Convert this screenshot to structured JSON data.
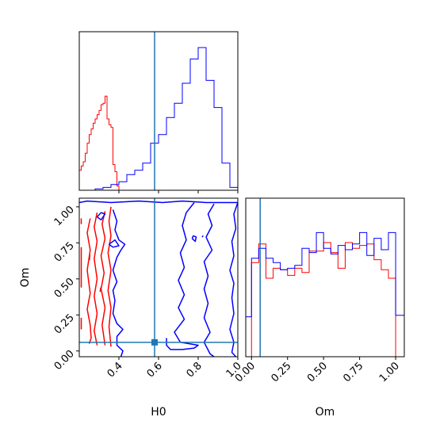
{
  "chart_data": [
    {
      "panel": "H0 marginal",
      "type": "histogram",
      "x_range": [
        0.2,
        1.0
      ],
      "x_ticks": [
        0.4,
        0.6,
        0.8,
        1.0
      ],
      "truth": 0.58,
      "series": [
        {
          "color": "#ff0000",
          "edges": [
            0.2,
            0.21,
            0.22,
            0.23,
            0.24,
            0.25,
            0.26,
            0.27,
            0.28,
            0.29,
            0.3,
            0.31,
            0.32,
            0.33,
            0.34,
            0.35,
            0.36,
            0.37,
            0.38,
            0.39,
            0.4,
            0.41
          ],
          "counts": [
            0.14,
            0.17,
            0.2,
            0.26,
            0.33,
            0.39,
            0.43,
            0.47,
            0.5,
            0.53,
            0.56,
            0.6,
            0.61,
            0.66,
            0.5,
            0.46,
            0.44,
            0.18,
            0.13,
            0.03,
            0.0
          ]
        },
        {
          "color": "#0000ff",
          "edges": [
            0.2,
            0.24,
            0.28,
            0.32,
            0.36,
            0.4,
            0.44,
            0.48,
            0.52,
            0.56,
            0.6,
            0.64,
            0.68,
            0.72,
            0.76,
            0.8,
            0.84,
            0.88,
            0.92,
            0.96,
            1.0
          ],
          "counts": [
            0.0,
            0.0,
            0.01,
            0.02,
            0.04,
            0.06,
            0.11,
            0.14,
            0.19,
            0.33,
            0.39,
            0.51,
            0.61,
            0.75,
            0.92,
            1.0,
            0.77,
            0.58,
            0.19,
            0.02
          ]
        }
      ]
    },
    {
      "panel": "Om marginal",
      "type": "histogram",
      "x_range": [
        -0.04,
        1.06
      ],
      "x_ticks": [
        0.0,
        0.25,
        0.5,
        0.75,
        1.0
      ],
      "x_tick_labels": [
        "0.00",
        "0.25",
        "0.50",
        "0.75",
        "1.00"
      ],
      "xlabel": "Om",
      "truth": 0.06,
      "series": [
        {
          "color": "#ff0000",
          "edges": [
            0.0,
            0.05,
            0.1,
            0.15,
            0.2,
            0.25,
            0.3,
            0.35,
            0.4,
            0.45,
            0.5,
            0.55,
            0.6,
            0.65,
            0.7,
            0.75,
            0.8,
            0.85,
            0.9,
            0.95,
            1.0
          ],
          "counts": [
            0.66,
            0.79,
            0.55,
            0.62,
            0.61,
            0.57,
            0.62,
            0.59,
            0.74,
            0.74,
            0.8,
            0.73,
            0.62,
            0.8,
            0.76,
            0.78,
            0.79,
            0.68,
            0.61,
            0.55
          ]
        },
        {
          "color": "#0000ff",
          "edges": [
            -0.04,
            0.0,
            0.05,
            0.1,
            0.15,
            0.2,
            0.25,
            0.3,
            0.35,
            0.4,
            0.45,
            0.5,
            0.55,
            0.6,
            0.65,
            0.7,
            0.75,
            0.8,
            0.85,
            0.9,
            0.95,
            1.0,
            1.06
          ],
          "counts": [
            0.28,
            0.69,
            0.76,
            0.69,
            0.66,
            0.61,
            0.62,
            0.64,
            0.76,
            0.73,
            0.87,
            0.76,
            0.72,
            0.78,
            0.75,
            0.79,
            0.87,
            0.71,
            0.83,
            0.75,
            0.87,
            0.29
          ]
        }
      ]
    },
    {
      "panel": "H0 vs Om joint",
      "type": "contour",
      "x_range": [
        0.2,
        1.0
      ],
      "y_range": [
        -0.04,
        1.06
      ],
      "x_ticks": [
        0.4,
        0.6,
        0.8,
        1.0
      ],
      "y_ticks": [
        0.0,
        0.25,
        0.5,
        0.75,
        1.0
      ],
      "y_tick_labels": [
        "0.00",
        "0.25",
        "0.50",
        "0.75",
        "1.00"
      ],
      "xlabel": "H0",
      "ylabel": "Om",
      "truth": {
        "x": 0.58,
        "y": 0.06
      },
      "series": [
        {
          "color": "#ff0000",
          "contours": [
            [
              [
                0.21,
                0.92
              ],
              [
                0.21,
                0.88
              ]
            ],
            [
              [
                0.21,
                0.72
              ],
              [
                0.21,
                0.44
              ]
            ],
            [
              [
                0.21,
                0.23
              ],
              [
                0.21,
                0.15
              ]
            ],
            [
              [
                0.255,
                0.92
              ],
              [
                0.24,
                0.82
              ],
              [
                0.255,
                0.7
              ],
              [
                0.24,
                0.56
              ],
              [
                0.255,
                0.4
              ],
              [
                0.24,
                0.29
              ],
              [
                0.255,
                0.18
              ],
              [
                0.26,
                0.09
              ],
              [
                0.25,
                0.05
              ]
            ],
            [
              [
                0.29,
                0.96
              ],
              [
                0.275,
                0.86
              ],
              [
                0.29,
                0.76
              ],
              [
                0.275,
                0.64
              ],
              [
                0.29,
                0.5
              ],
              [
                0.275,
                0.38
              ],
              [
                0.29,
                0.26
              ],
              [
                0.275,
                0.14
              ],
              [
                0.29,
                0.04
              ]
            ],
            [
              [
                0.33,
                0.97
              ],
              [
                0.315,
                0.88
              ],
              [
                0.33,
                0.78
              ],
              [
                0.31,
                0.66
              ],
              [
                0.325,
                0.54
              ],
              [
                0.31,
                0.43
              ],
              [
                0.33,
                0.3
              ],
              [
                0.315,
                0.18
              ],
              [
                0.33,
                0.04
              ]
            ],
            [
              [
                0.36,
                1.0
              ],
              [
                0.35,
                0.9
              ],
              [
                0.36,
                0.8
              ],
              [
                0.345,
                0.68
              ],
              [
                0.36,
                0.56
              ],
              [
                0.345,
                0.42
              ],
              [
                0.36,
                0.3
              ],
              [
                0.35,
                0.17
              ],
              [
                0.36,
                0.03
              ]
            ],
            [
              [
                0.308,
                0.44
              ],
              [
                0.305,
                0.41
              ]
            ],
            [
              [
                0.253,
                0.67
              ],
              [
                0.251,
                0.63
              ]
            ]
          ]
        },
        {
          "color": "#0000ff",
          "contours": [
            [
              [
                0.2,
                1.03
              ],
              [
                0.24,
                1.04
              ],
              [
                0.36,
                1.03
              ],
              [
                0.5,
                1.04
              ],
              [
                0.62,
                1.03
              ],
              [
                0.72,
                1.04
              ],
              [
                0.84,
                1.03
              ],
              [
                1.0,
                1.03
              ]
            ],
            [
              [
                0.37,
                0.98
              ],
              [
                0.39,
                0.9
              ],
              [
                0.38,
                0.84
              ],
              [
                0.4,
                0.77
              ],
              [
                0.43,
                0.74
              ],
              [
                0.41,
                0.7
              ],
              [
                0.39,
                0.65
              ],
              [
                0.37,
                0.56
              ],
              [
                0.39,
                0.48
              ],
              [
                0.37,
                0.42
              ],
              [
                0.38,
                0.35
              ],
              [
                0.37,
                0.26
              ],
              [
                0.39,
                0.19
              ],
              [
                0.42,
                0.15
              ],
              [
                0.39,
                0.1
              ],
              [
                0.39,
                0.04
              ],
              [
                0.42,
                0.0
              ],
              [
                0.41,
                -0.04
              ]
            ],
            [
              [
                0.88,
                1.02
              ],
              [
                0.85,
                0.95
              ],
              [
                0.87,
                0.87
              ],
              [
                0.84,
                0.79
              ],
              [
                0.87,
                0.7
              ],
              [
                0.83,
                0.62
              ],
              [
                0.85,
                0.52
              ],
              [
                0.83,
                0.43
              ],
              [
                0.85,
                0.33
              ],
              [
                0.83,
                0.23
              ],
              [
                0.86,
                0.13
              ],
              [
                0.83,
                0.06
              ],
              [
                0.86,
                -0.02
              ],
              [
                0.88,
                -0.04
              ]
            ],
            [
              [
                1.0,
                1.03
              ],
              [
                0.98,
                0.95
              ],
              [
                0.99,
                0.85
              ],
              [
                0.97,
                0.76
              ],
              [
                0.98,
                0.66
              ],
              [
                0.96,
                0.56
              ],
              [
                0.98,
                0.47
              ],
              [
                0.97,
                0.37
              ],
              [
                0.98,
                0.26
              ],
              [
                0.96,
                0.15
              ],
              [
                0.98,
                0.06
              ],
              [
                0.97,
                -0.01
              ],
              [
                0.99,
                -0.04
              ]
            ],
            [
              [
                0.29,
                0.93
              ],
              [
                0.31,
                0.96
              ],
              [
                0.33,
                0.95
              ],
              [
                0.31,
                0.91
              ],
              [
                0.29,
                0.93
              ]
            ],
            [
              [
                0.35,
                0.74
              ],
              [
                0.38,
                0.77
              ],
              [
                0.4,
                0.73
              ],
              [
                0.37,
                0.72
              ],
              [
                0.35,
                0.74
              ]
            ],
            [
              [
                0.775,
                0.8
              ],
              [
                0.79,
                0.79
              ],
              [
                0.785,
                0.76
              ],
              [
                0.77,
                0.78
              ],
              [
                0.775,
                0.8
              ]
            ],
            [
              [
                0.82,
                0.79
              ],
              [
                0.825,
                0.8
              ]
            ],
            [
              [
                0.78,
                1.03
              ],
              [
                0.74,
                0.96
              ],
              [
                0.72,
                0.87
              ],
              [
                0.74,
                0.77
              ],
              [
                0.71,
                0.68
              ],
              [
                0.73,
                0.58
              ],
              [
                0.7,
                0.49
              ],
              [
                0.73,
                0.39
              ],
              [
                0.7,
                0.3
              ],
              [
                0.73,
                0.22
              ],
              [
                0.68,
                0.13
              ],
              [
                0.71,
                0.06
              ],
              [
                0.8,
                0.04
              ],
              [
                0.78,
                0.02
              ],
              [
                0.72,
                0.01
              ],
              [
                0.66,
                0.01
              ],
              [
                0.64,
                0.04
              ],
              [
                0.64,
                0.09
              ]
            ]
          ]
        }
      ]
    }
  ]
}
